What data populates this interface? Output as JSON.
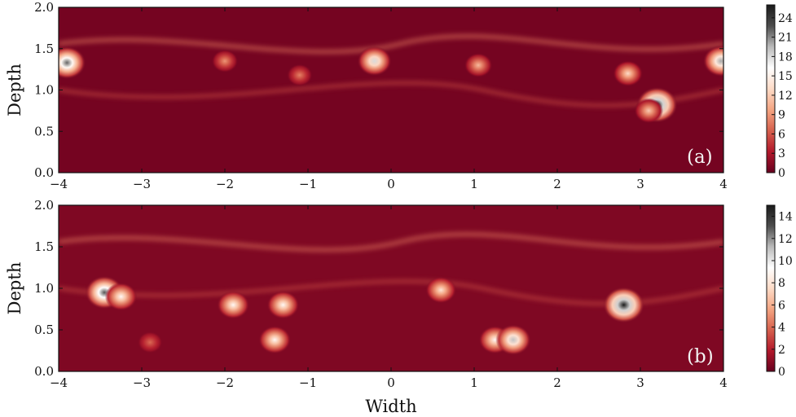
{
  "chart_data": [
    {
      "type": "heatmap",
      "panel_label": "(a)",
      "xlabel": "",
      "ylabel": "Depth",
      "xlim": [
        -4,
        4
      ],
      "ylim": [
        0.0,
        2.0
      ],
      "x_ticks": [
        "−4",
        "−3",
        "−2",
        "−1",
        "0",
        "1",
        "2",
        "3",
        "4"
      ],
      "y_ticks": [
        "0.0",
        "0.5",
        "1.0",
        "1.5",
        "2.0"
      ],
      "colorbar": {
        "range": [
          0,
          26
        ],
        "ticks": [
          "0",
          "3",
          "6",
          "9",
          "12",
          "15",
          "18",
          "21",
          "24"
        ]
      },
      "colormap": [
        "#67001f",
        "#b2182b",
        "#d6604d",
        "#f4a582",
        "#fddbc7",
        "#ffffff",
        "#bababa",
        "#4d4d4d",
        "#1a1a1a"
      ],
      "vortices": [
        {
          "x": -3.9,
          "y": 1.33,
          "value": 22
        },
        {
          "x": -2.0,
          "y": 1.35,
          "value": 9
        },
        {
          "x": -1.1,
          "y": 1.18,
          "value": 8
        },
        {
          "x": -0.2,
          "y": 1.35,
          "value": 18
        },
        {
          "x": 1.05,
          "y": 1.3,
          "value": 11
        },
        {
          "x": 2.85,
          "y": 1.2,
          "value": 13
        },
        {
          "x": 3.2,
          "y": 0.82,
          "value": 26
        },
        {
          "x": 3.1,
          "y": 0.75,
          "value": 12
        },
        {
          "x": 3.97,
          "y": 1.35,
          "value": 20
        }
      ]
    },
    {
      "type": "heatmap",
      "panel_label": "(b)",
      "xlabel": "Width",
      "ylabel": "Depth",
      "xlim": [
        -4,
        4
      ],
      "ylim": [
        0.0,
        2.0
      ],
      "x_ticks": [
        "−4",
        "−3",
        "−2",
        "−1",
        "0",
        "1",
        "2",
        "3",
        "4"
      ],
      "y_ticks": [
        "0.0",
        "0.5",
        "1.0",
        "1.5",
        "2.0"
      ],
      "colorbar": {
        "range": [
          0,
          15
        ],
        "ticks": [
          "0",
          "2",
          "4",
          "6",
          "8",
          "10",
          "12",
          "14"
        ]
      },
      "colormap": [
        "#67001f",
        "#b2182b",
        "#d6604d",
        "#f4a582",
        "#fddbc7",
        "#ffffff",
        "#bababa",
        "#4d4d4d",
        "#1a1a1a"
      ],
      "vortices": [
        {
          "x": -3.45,
          "y": 0.95,
          "value": 13
        },
        {
          "x": -3.25,
          "y": 0.9,
          "value": 9
        },
        {
          "x": -1.9,
          "y": 0.8,
          "value": 9
        },
        {
          "x": -1.3,
          "y": 0.8,
          "value": 9
        },
        {
          "x": -1.4,
          "y": 0.38,
          "value": 9
        },
        {
          "x": 0.6,
          "y": 0.98,
          "value": 8
        },
        {
          "x": 1.25,
          "y": 0.38,
          "value": 9
        },
        {
          "x": 1.47,
          "y": 0.38,
          "value": 11
        },
        {
          "x": 2.8,
          "y": 0.8,
          "value": 15
        },
        {
          "x": -2.9,
          "y": 0.35,
          "value": 4
        }
      ]
    }
  ]
}
